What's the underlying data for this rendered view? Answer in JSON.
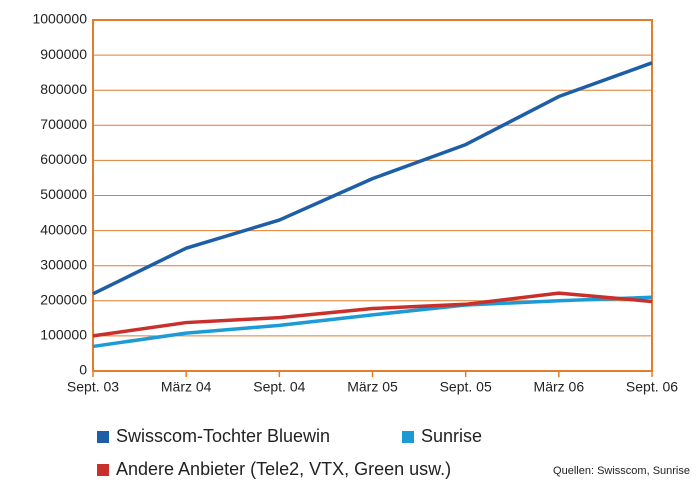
{
  "chart_data": {
    "type": "line",
    "categories": [
      "Sept. 03",
      "März 04",
      "Sept. 04",
      "März 05",
      "Sept. 05",
      "März 06",
      "Sept. 06"
    ],
    "series": [
      {
        "name": "Swisscom-Tochter Bluewin",
        "color": "#1d5ea6",
        "values": [
          220000,
          350000,
          430000,
          548000,
          645000,
          782000,
          878000
        ]
      },
      {
        "name": "Sunrise",
        "color": "#1c9bd7",
        "values": [
          70000,
          108000,
          130000,
          160000,
          188000,
          200000,
          210000
        ]
      },
      {
        "name": "Andere Anbieter (Tele2, VTX, Green usw.)",
        "color": "#c9302c",
        "values": [
          100000,
          138000,
          152000,
          178000,
          190000,
          222000,
          198000
        ]
      }
    ],
    "ylim": [
      0,
      1000000
    ],
    "yticks": [
      0,
      100000,
      200000,
      300000,
      400000,
      500000,
      600000,
      700000,
      800000,
      900000,
      1000000
    ],
    "grid": true,
    "grid_color": "#e27d2e",
    "source": "Quellen: Swisscom, Sunrise"
  }
}
